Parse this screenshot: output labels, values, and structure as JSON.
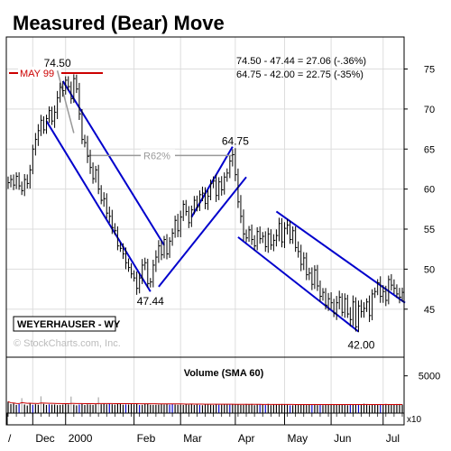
{
  "chart_data": {
    "type": "line",
    "title": "Measured (Bear) Move",
    "subtitle": "",
    "xlabel": "",
    "ylabel": "",
    "ylim": [
      39,
      79
    ],
    "y_ticks": [
      45,
      50,
      55,
      60,
      65,
      70,
      75
    ],
    "volume_ylim": [
      0,
      7500
    ],
    "volume_ticks": [
      5000
    ],
    "volume_label": "Volume (SMA 60)",
    "volume_multiplier": "x10",
    "x_tick_labels": [
      "/",
      "Dec",
      "2000",
      "Feb",
      "Mar",
      "Apr",
      "May",
      "Jun",
      "Jul"
    ],
    "grid": true,
    "legend": "none",
    "ticker_label": "WEYERHAUSER - WY",
    "watermark": "© StockCharts.com, Inc.",
    "notes": [
      "74.50 - 47.44 = 27.06 (-.36%)",
      "64.75 - 42.00 = 22.75 (-35%)"
    ],
    "price_labels": [
      {
        "text": "74.50",
        "x": 18,
        "y": 74.5
      },
      {
        "text": "64.75",
        "x": 83,
        "y": 64.75
      },
      {
        "text": "47.44",
        "x": 52,
        "y": 47.44
      },
      {
        "text": "42.00",
        "x": 129,
        "y": 42.0
      }
    ],
    "may99_label": "MAY 99",
    "may99_level": 74.5,
    "retracement_label": "R62%",
    "retracement_level": 64.2,
    "trend_channels": [
      {
        "from": [
          14,
          68.5
        ],
        "to": [
          52,
          47.2
        ]
      },
      {
        "from": [
          20,
          73.5
        ],
        "to": [
          57,
          53.0
        ]
      },
      {
        "from": [
          55,
          47.8
        ],
        "to": [
          87,
          61.5
        ]
      },
      {
        "from": [
          67,
          56.5
        ],
        "to": [
          82,
          65.3
        ]
      },
      {
        "from": [
          84,
          54.0
        ],
        "to": [
          128,
          42.2
        ]
      },
      {
        "from": [
          98,
          57.2
        ],
        "to": [
          145,
          45.8
        ]
      }
    ],
    "colors": {
      "price_bars": "#000000",
      "channels": "#0000cc",
      "may99": "#cc0000",
      "retracement": "#999999",
      "sma": "#cc0000",
      "grid": "#dddddd",
      "volume_highlight": "#0000cc",
      "volume_gray": "#aaaaaa"
    },
    "series": [
      {
        "closes": [
          60.8,
          61.2,
          60.5,
          61.6,
          60.4,
          59.8,
          61.2,
          60.7,
          62.4,
          65.0,
          66.2,
          67.3,
          68.6,
          67.4,
          68.8,
          69.8,
          68.5,
          69.6,
          71.4,
          72.7,
          72.3,
          73.6,
          72.8,
          71.3,
          73.8,
          72.5,
          69.4,
          66.2,
          65.8,
          64.1,
          62.7,
          61.3,
          62.4,
          60.0,
          58.6,
          58.8,
          57.0,
          56.6,
          55.2,
          54.8,
          52.9,
          52.6,
          51.9,
          50.8,
          50.2,
          49.4,
          48.9,
          47.6,
          48.9,
          50.5,
          50.8,
          48.2,
          48.4,
          50.5,
          51.5,
          52.9,
          51.8,
          53.7,
          51.9,
          53.5,
          54.5,
          56.1,
          54.8,
          56.5,
          58.1,
          57.2,
          55.8,
          57.4,
          58.6,
          57.8,
          59.3,
          59.5,
          58.2,
          59.1,
          60.7,
          61.0,
          59.2,
          60.9,
          59.9,
          61.5,
          62.0,
          63.5,
          64.3,
          61.8,
          58.4,
          56.6,
          54.4,
          53.9,
          54.9,
          53.7,
          52.9,
          54.7,
          53.8,
          54.1,
          52.8,
          54.4,
          53.0,
          53.6,
          54.2,
          55.7,
          53.4,
          55.1,
          55.5,
          53.7,
          54.8,
          52.7,
          52.2,
          50.6,
          51.4,
          49.3,
          49.5,
          48.1,
          49.9,
          47.9,
          46.6,
          47.1,
          45.5,
          46.3,
          45.8,
          44.5,
          45.8,
          46.5,
          44.6,
          46.3,
          44.4,
          43.7,
          45.9,
          42.8,
          45.4,
          44.7,
          45.1,
          45.9,
          44.2,
          46.9,
          47.2,
          48.3,
          46.6,
          47.2,
          46.1,
          48.7,
          48.0,
          47.6,
          46.9,
          46.5,
          47.1
        ],
        "ranges": [
          1.7,
          1.3,
          1.4,
          1.1,
          1.1,
          1.2,
          1.5,
          1.4,
          1.4,
          1.2,
          1.8,
          1.8,
          1.5,
          1.1,
          1.1,
          1.2,
          1.1,
          1.9,
          1.9,
          1.3,
          1.7,
          1.1,
          1.1,
          1.4,
          1.2,
          1.1,
          1.7,
          1.3,
          1.3,
          1.9,
          1.8,
          1.4,
          1.1,
          1.4,
          1.1,
          1.8,
          1.5,
          1.8,
          1.8,
          1.2,
          1.2,
          1.0,
          1.4,
          1.8,
          1.2,
          1.2,
          1.0,
          1.8,
          1.4,
          1.7,
          1.4,
          1.1,
          1.1,
          1.5,
          1.9,
          1.6,
          1.5,
          1.0,
          1.5,
          1.1,
          1.3,
          1.3,
          1.8,
          1.8,
          1.1,
          1.2,
          1.5,
          1.2,
          1.2,
          1.3,
          1.2,
          1.8,
          1.6,
          1.8,
          1.1,
          1.3,
          1.8,
          1.3,
          1.6,
          1.3,
          1.3,
          1.4,
          1.5,
          1.8,
          1.7,
          1.9,
          1.9,
          1.2,
          1.1,
          1.5,
          1.2,
          1.2,
          1.4,
          1.2,
          1.4,
          1.7,
          1.3,
          1.7,
          1.7,
          1.6,
          1.5,
          1.7,
          1.7,
          1.2,
          1.2,
          1.2,
          1.7,
          1.9,
          1.6,
          1.5,
          1.5,
          1.6,
          1.3,
          1.4,
          1.5,
          1.2,
          1.2,
          1.6,
          1.8,
          1.1,
          1.9,
          1.8,
          1.1,
          1.5,
          1.1,
          1.9,
          1.8,
          1.3,
          1.5,
          1.7,
          1.7,
          1.0,
          1.8,
          1.3,
          1.1,
          1.0,
          1.8,
          1.8,
          1.6,
          1.1,
          1.5,
          1.6,
          1.1,
          1.7,
          1.3
        ],
        "volume": [
          1549,
          1218,
          1310,
          1100,
          1216,
          2007,
          1155,
          1024,
          1347,
          1101,
          1196,
          1126,
          2250,
          1244,
          1097,
          1183,
          1142,
          1156,
          1075,
          1097,
          1143,
          1248,
          1170,
          2218,
          1140,
          1044,
          1151,
          1248,
          1091,
          1179,
          1151,
          1103,
          1186,
          2122,
          1191,
          1253,
          1183,
          1282,
          1188,
          1140,
          1231,
          1283,
          1126,
          1168,
          1157,
          1276,
          1179,
          1226,
          1084,
          1115,
          1230,
          1217,
          1119,
          1102,
          1123,
          1136,
          1201,
          1155,
          1230,
          1138,
          1233,
          1149,
          1119,
          1146,
          1093,
          1170,
          1126,
          1248,
          1092,
          1145,
          1094,
          1062,
          1179,
          1216,
          1121,
          1084,
          1147,
          1125,
          1133,
          1211,
          1219,
          1135,
          1195,
          1193,
          1190,
          1108,
          1108,
          1225,
          1144,
          1232,
          1067,
          1204,
          1184,
          1188,
          1081,
          1240,
          1067,
          1207,
          1177,
          1214,
          1224,
          1154,
          1159,
          1050,
          1059,
          1138,
          1116,
          1202,
          1170,
          1079,
          1178,
          1149,
          1217,
          1077,
          1165,
          1071,
          1145,
          1142,
          1219,
          1108,
          1185,
          1190,
          1201,
          1145,
          1067,
          1183,
          1200,
          1147,
          1201,
          1097,
          1253,
          1152,
          1058,
          1127,
          1151,
          1116,
          1201,
          1105,
          1222,
          1113,
          1178,
          1126,
          1224,
          1226,
          1155
        ]
      }
    ]
  }
}
